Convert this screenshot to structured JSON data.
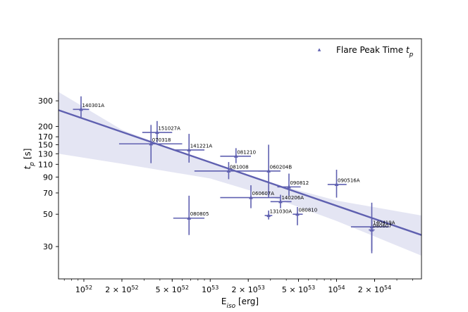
{
  "chart_data": {
    "type": "scatter",
    "title": "",
    "xlabel": "E_iso [erg]",
    "xlabel_main": "E",
    "xlabel_sub": "iso",
    "xlabel_unit": " [erg]",
    "ylabel": "t_p [s]",
    "ylabel_main": "t",
    "ylabel_sub": "p",
    "ylabel_unit": " [s]",
    "xscale": "log",
    "yscale": "log",
    "xlim": [
      6.3e+51,
      4.7e+54
    ],
    "ylim": [
      18,
      800
    ],
    "x_ticks": [
      {
        "value": 1e+52,
        "base": "10",
        "exp": "52",
        "mant": ""
      },
      {
        "value": 2e+52,
        "base": "10",
        "exp": "52",
        "mant": "2 × "
      },
      {
        "value": 5e+52,
        "base": "10",
        "exp": "52",
        "mant": "5 × "
      },
      {
        "value": 1e+53,
        "base": "10",
        "exp": "53",
        "mant": ""
      },
      {
        "value": 2e+53,
        "base": "10",
        "exp": "53",
        "mant": "2 × "
      },
      {
        "value": 5e+53,
        "base": "10",
        "exp": "53",
        "mant": "5 × "
      },
      {
        "value": 1e+54,
        "base": "10",
        "exp": "54",
        "mant": ""
      },
      {
        "value": 2e+54,
        "base": "10",
        "exp": "54",
        "mant": "2 × "
      }
    ],
    "y_ticks": [
      {
        "value": 30,
        "label": "30"
      },
      {
        "value": 50,
        "label": "50"
      },
      {
        "value": 70,
        "label": "70"
      },
      {
        "value": 90,
        "label": "90"
      },
      {
        "value": 110,
        "label": "110"
      },
      {
        "value": 130,
        "label": "130"
      },
      {
        "value": 150,
        "label": "150"
      },
      {
        "value": 170,
        "label": "170"
      },
      {
        "value": 200,
        "label": "200"
      },
      {
        "value": 300,
        "label": "300"
      }
    ],
    "legend": {
      "label_prefix": "Flare Peak Time ",
      "label_main": "t",
      "label_sub": "p",
      "position": "top-right"
    },
    "color": "#5f60b0",
    "fit_line": {
      "x": [
        6.3e+51,
        4.7e+54
      ],
      "y": [
        259,
        36
      ]
    },
    "confidence_band": {
      "x": [
        6.3e+51,
        2e+52,
        1e+53,
        3e+53,
        1e+54,
        4.7e+54
      ],
      "upper": [
        345,
        190,
        112,
        82,
        62,
        49
      ],
      "lower": [
        130,
        111,
        88,
        66,
        45,
        26
      ]
    },
    "points": [
      {
        "label": "140301A",
        "x": 9.5e+51,
        "y": 262,
        "xerr": [
          8.2e+51,
          1.1e+52
        ],
        "yerr": [
          231,
          322
        ]
      },
      {
        "label": "151027A",
        "x": 3.8e+52,
        "y": 182,
        "xerr": [
          2.9e+52,
          5e+52
        ],
        "yerr": [
          155,
          218
        ]
      },
      {
        "label": "070318",
        "x": 3.4e+52,
        "y": 152,
        "xerr": [
          1.9e+52,
          6e+52
        ],
        "yerr": [
          112,
          205
        ]
      },
      {
        "label": "141221A",
        "x": 6.8e+52,
        "y": 138,
        "xerr": [
          5.1e+52,
          9e+52
        ],
        "yerr": [
          113,
          178
        ]
      },
      {
        "label": "081210",
        "x": 1.6e+53,
        "y": 125,
        "xerr": [
          1.2e+53,
          2.1e+53
        ],
        "yerr": [
          112,
          142
        ]
      },
      {
        "label": "081008",
        "x": 1.4e+53,
        "y": 99,
        "xerr": [
          7.5e+52,
          2.8e+53
        ],
        "yerr": [
          87,
          114
        ]
      },
      {
        "label": "060204B",
        "x": 2.9e+53,
        "y": 99,
        "xerr": [
          2.4e+53,
          3.6e+53
        ],
        "yerr": [
          65,
          150
        ]
      },
      {
        "label": "090812",
        "x": 4.2e+53,
        "y": 77,
        "xerr": [
          3.4e+53,
          5.2e+53
        ],
        "yerr": [
          67,
          95
        ]
      },
      {
        "label": "090516A",
        "x": 1e+54,
        "y": 80,
        "xerr": [
          8.5e+53,
          1.2e+54
        ],
        "yerr": [
          65,
          101
        ]
      },
      {
        "label": "060607A",
        "x": 2.1e+53,
        "y": 65,
        "xerr": [
          1.2e+53,
          3.6e+53
        ],
        "yerr": [
          55,
          79
        ]
      },
      {
        "label": "140206A",
        "x": 3.6e+53,
        "y": 61,
        "xerr": [
          3e+53,
          4.4e+53
        ],
        "yerr": [
          55,
          68
        ]
      },
      {
        "label": "131030A",
        "x": 2.9e+53,
        "y": 49,
        "xerr": [
          2.7e+53,
          3.1e+53
        ],
        "yerr": [
          46,
          53
        ]
      },
      {
        "label": "080810",
        "x": 4.9e+53,
        "y": 50,
        "xerr": [
          4.5e+53,
          5.4e+53
        ],
        "yerr": [
          42,
          56
        ]
      },
      {
        "label": "080805",
        "x": 6.8e+52,
        "y": 47,
        "xerr": [
          5.1e+52,
          9e+52
        ],
        "yerr": [
          36,
          67
        ]
      },
      {
        "label": "140419A",
        "x": 1.9e+54,
        "y": 41,
        "xerr": [
          1.3e+54,
          2.6e+54
        ],
        "yerr": [
          28,
          60
        ]
      },
      {
        "label": "080607",
        "x": 1.9e+54,
        "y": 39,
        "xerr": [
          1.8e+54,
          2e+54
        ],
        "yerr": [
          27,
          47
        ]
      }
    ]
  }
}
